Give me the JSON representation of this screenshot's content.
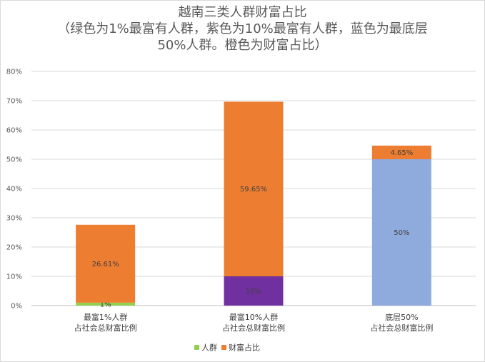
{
  "chart_data": {
    "type": "bar",
    "stacked": true,
    "title": "越南三类人群财富占比",
    "subtitle_lines": [
      "（绿色为1%最富有人群，紫色为10%最富有人群，蓝色为最底层",
      "50%人群。橙色为财富占比）"
    ],
    "categories": [
      [
        "最富1%人群",
        "占社会总财富比例"
      ],
      [
        "最富10%人群",
        "占社会总财富比例"
      ],
      [
        "底层50%",
        "占社会总财富比例"
      ]
    ],
    "series": [
      {
        "name": "人群",
        "values": [
          1,
          10,
          50
        ],
        "labels": [
          "1%",
          "10%",
          "50%"
        ],
        "point_colors": [
          "#92d050",
          "#7030a0",
          "#8faadc"
        ]
      },
      {
        "name": "财富占比",
        "values": [
          26.61,
          59.65,
          4.65
        ],
        "labels": [
          "26.61%",
          "59.65%",
          "4.65%"
        ],
        "point_colors": [
          "#ed7d31",
          "#ed7d31",
          "#ed7d31"
        ]
      }
    ],
    "legend": [
      {
        "name": "人群",
        "color": "#92d050"
      },
      {
        "name": "财富占比",
        "color": "#ed7d31"
      }
    ],
    "legend_position": "bottom",
    "y_ticks": [
      "0%",
      "10%",
      "20%",
      "30%",
      "40%",
      "50%",
      "60%",
      "70%",
      "80%"
    ],
    "ylim": [
      0,
      80
    ],
    "grid": true
  }
}
